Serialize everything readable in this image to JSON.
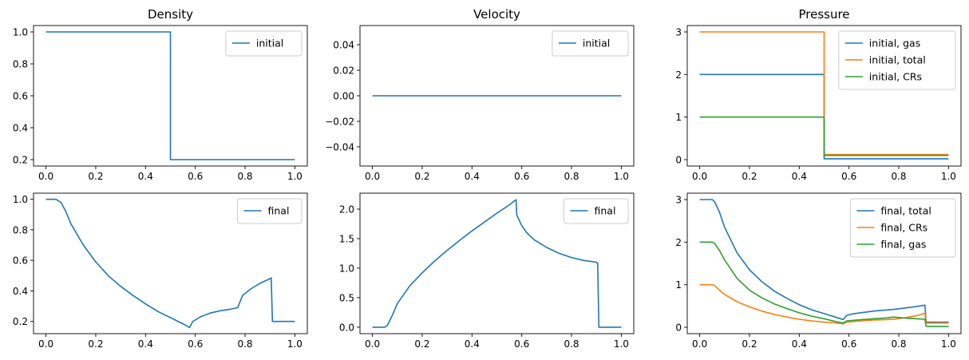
{
  "colors": {
    "C0": "#1f77b4",
    "C1": "#ff7f0e",
    "C2": "#2ca02c"
  },
  "chart_data": [
    {
      "id": "density-initial",
      "type": "line",
      "title": "Density",
      "xlim": [
        -0.05,
        1.05
      ],
      "ylim": [
        0.16,
        1.04
      ],
      "xticks": [
        "0.0",
        "0.2",
        "0.4",
        "0.6",
        "0.8",
        "1.0"
      ],
      "yticks": [
        "0.2",
        "0.4",
        "0.6",
        "0.8",
        "1.0"
      ],
      "legend": "top-right",
      "series": [
        {
          "name": "initial",
          "color": "#1f77b4",
          "x": [
            0,
            0.5,
            0.5,
            1.0
          ],
          "y": [
            1.0,
            1.0,
            0.2,
            0.2
          ]
        }
      ]
    },
    {
      "id": "velocity-initial",
      "type": "line",
      "title": "Velocity",
      "xlim": [
        -0.05,
        1.05
      ],
      "ylim": [
        -0.055,
        0.055
      ],
      "xticks": [
        "0.0",
        "0.2",
        "0.4",
        "0.6",
        "0.8",
        "1.0"
      ],
      "yticks": [
        "−0.04",
        "−0.02",
        "0.00",
        "0.02",
        "0.04"
      ],
      "legend": "top-right",
      "series": [
        {
          "name": "initial",
          "color": "#1f77b4",
          "x": [
            0,
            1.0
          ],
          "y": [
            0.0,
            0.0
          ]
        }
      ]
    },
    {
      "id": "pressure-initial",
      "type": "line",
      "title": "Pressure",
      "xlim": [
        -0.05,
        1.05
      ],
      "ylim": [
        -0.15,
        3.15
      ],
      "xticks": [
        "0.0",
        "0.2",
        "0.4",
        "0.6",
        "0.8",
        "1.0"
      ],
      "yticks": [
        "0",
        "1",
        "2",
        "3"
      ],
      "legend": "top-right",
      "series": [
        {
          "name": "initial, gas",
          "color": "#1f77b4",
          "x": [
            0,
            0.5,
            0.5,
            1.0
          ],
          "y": [
            2.0,
            2.0,
            0.02,
            0.02
          ]
        },
        {
          "name": "initial, total",
          "color": "#ff7f0e",
          "x": [
            0,
            0.5,
            0.5,
            1.0
          ],
          "y": [
            3.0,
            3.0,
            0.12,
            0.12
          ]
        },
        {
          "name": "initial, CRs",
          "color": "#2ca02c",
          "x": [
            0,
            0.5,
            0.5,
            1.0
          ],
          "y": [
            1.0,
            1.0,
            0.1,
            0.1
          ]
        }
      ]
    },
    {
      "id": "density-final",
      "type": "line",
      "title": "",
      "xlim": [
        -0.05,
        1.05
      ],
      "ylim": [
        0.12,
        1.04
      ],
      "xticks": [
        "0.0",
        "0.2",
        "0.4",
        "0.6",
        "0.8",
        "1.0"
      ],
      "yticks": [
        "0.2",
        "0.4",
        "0.6",
        "0.8",
        "1.0"
      ],
      "legend": "top-right",
      "series": [
        {
          "name": "final",
          "color": "#1f77b4",
          "x": [
            0,
            0.04,
            0.06,
            0.08,
            0.1,
            0.15,
            0.2,
            0.25,
            0.3,
            0.35,
            0.4,
            0.45,
            0.5,
            0.55,
            0.577,
            0.59,
            0.62,
            0.66,
            0.7,
            0.74,
            0.77,
            0.78,
            0.79,
            0.82,
            0.86,
            0.9,
            0.905,
            0.91,
            0.92,
            1.0
          ],
          "y": [
            1.0,
            1.0,
            0.98,
            0.92,
            0.84,
            0.7,
            0.59,
            0.5,
            0.43,
            0.37,
            0.315,
            0.265,
            0.225,
            0.185,
            0.16,
            0.2,
            0.23,
            0.255,
            0.27,
            0.28,
            0.29,
            0.33,
            0.37,
            0.41,
            0.45,
            0.48,
            0.485,
            0.2,
            0.2,
            0.2
          ]
        }
      ]
    },
    {
      "id": "velocity-final",
      "type": "line",
      "title": "",
      "xlim": [
        -0.05,
        1.05
      ],
      "ylim": [
        -0.11,
        2.27
      ],
      "xticks": [
        "0.0",
        "0.2",
        "0.4",
        "0.6",
        "0.8",
        "1.0"
      ],
      "yticks": [
        "0.0",
        "0.5",
        "1.0",
        "1.5",
        "2.0"
      ],
      "legend": "top-right",
      "series": [
        {
          "name": "final",
          "color": "#1f77b4",
          "x": [
            0,
            0.05,
            0.06,
            0.08,
            0.1,
            0.15,
            0.2,
            0.25,
            0.3,
            0.35,
            0.4,
            0.45,
            0.5,
            0.55,
            0.577,
            0.58,
            0.6,
            0.62,
            0.65,
            0.7,
            0.75,
            0.8,
            0.85,
            0.9,
            0.905,
            0.91,
            0.92,
            1.0
          ],
          "y": [
            0.0,
            0.0,
            0.03,
            0.2,
            0.4,
            0.7,
            0.92,
            1.12,
            1.3,
            1.47,
            1.63,
            1.78,
            1.93,
            2.07,
            2.16,
            1.9,
            1.72,
            1.6,
            1.48,
            1.35,
            1.25,
            1.18,
            1.13,
            1.1,
            1.08,
            0.0,
            0.0,
            0.0
          ]
        }
      ]
    },
    {
      "id": "pressure-final",
      "type": "line",
      "title": "",
      "xlim": [
        -0.05,
        1.05
      ],
      "ylim": [
        -0.15,
        3.15
      ],
      "xticks": [
        "0.0",
        "0.2",
        "0.4",
        "0.6",
        "0.8",
        "1.0"
      ],
      "yticks": [
        "0",
        "1",
        "2",
        "3"
      ],
      "legend": "top-right",
      "series": [
        {
          "name": "final, total",
          "color": "#1f77b4",
          "x": [
            0,
            0.05,
            0.06,
            0.08,
            0.1,
            0.15,
            0.2,
            0.25,
            0.3,
            0.35,
            0.4,
            0.45,
            0.5,
            0.55,
            0.577,
            0.59,
            0.62,
            0.7,
            0.78,
            0.85,
            0.905,
            0.91,
            0.92,
            1.0
          ],
          "y": [
            3.0,
            3.0,
            2.95,
            2.7,
            2.35,
            1.75,
            1.35,
            1.07,
            0.85,
            0.68,
            0.53,
            0.41,
            0.32,
            0.23,
            0.18,
            0.28,
            0.32,
            0.38,
            0.42,
            0.47,
            0.52,
            0.12,
            0.12,
            0.12
          ]
        },
        {
          "name": "final, CRs",
          "color": "#ff7f0e",
          "x": [
            0,
            0.05,
            0.06,
            0.08,
            0.1,
            0.15,
            0.2,
            0.25,
            0.3,
            0.35,
            0.4,
            0.45,
            0.5,
            0.55,
            0.577,
            0.59,
            0.65,
            0.7,
            0.75,
            0.78,
            0.82,
            0.87,
            0.905,
            0.91,
            0.92,
            1.0
          ],
          "y": [
            1.0,
            1.0,
            0.98,
            0.87,
            0.77,
            0.6,
            0.48,
            0.38,
            0.3,
            0.24,
            0.19,
            0.15,
            0.12,
            0.1,
            0.08,
            0.12,
            0.15,
            0.17,
            0.18,
            0.19,
            0.22,
            0.27,
            0.33,
            0.1,
            0.1,
            0.1
          ]
        },
        {
          "name": "final, gas",
          "color": "#2ca02c",
          "x": [
            0,
            0.05,
            0.06,
            0.08,
            0.1,
            0.15,
            0.2,
            0.25,
            0.3,
            0.35,
            0.4,
            0.45,
            0.5,
            0.55,
            0.577,
            0.59,
            0.65,
            0.7,
            0.75,
            0.78,
            0.82,
            0.87,
            0.905,
            0.91,
            0.92,
            1.0
          ],
          "y": [
            2.0,
            2.0,
            1.97,
            1.8,
            1.58,
            1.15,
            0.87,
            0.69,
            0.55,
            0.44,
            0.34,
            0.26,
            0.2,
            0.13,
            0.1,
            0.15,
            0.18,
            0.2,
            0.22,
            0.24,
            0.22,
            0.2,
            0.19,
            0.02,
            0.02,
            0.02
          ]
        }
      ]
    }
  ]
}
